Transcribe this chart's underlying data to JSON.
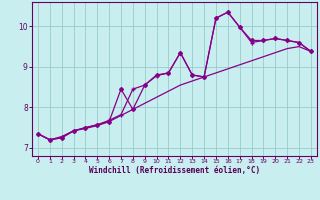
{
  "xlabel": "Windchill (Refroidissement éolien,°C)",
  "bg_color": "#c8eef0",
  "grid_color": "#99cccc",
  "line_color": "#880088",
  "xlim": [
    -0.5,
    23.5
  ],
  "ylim": [
    6.8,
    10.6
  ],
  "xticks": [
    0,
    1,
    2,
    3,
    4,
    5,
    6,
    7,
    8,
    9,
    10,
    11,
    12,
    13,
    14,
    15,
    16,
    17,
    18,
    19,
    20,
    21,
    22,
    23
  ],
  "yticks": [
    7,
    8,
    9,
    10
  ],
  "line1_x": [
    0,
    1,
    2,
    3,
    4,
    5,
    6,
    7,
    8,
    9,
    10,
    11,
    12,
    13,
    14,
    15,
    16,
    17,
    18,
    19,
    20,
    21,
    22,
    23
  ],
  "line1_y": [
    7.35,
    7.2,
    7.25,
    7.42,
    7.48,
    7.55,
    7.65,
    7.8,
    7.95,
    8.1,
    8.25,
    8.4,
    8.55,
    8.65,
    8.75,
    8.85,
    8.95,
    9.05,
    9.15,
    9.25,
    9.35,
    9.45,
    9.5,
    9.38
  ],
  "line2_x": [
    0,
    1,
    2,
    3,
    4,
    5,
    6,
    7,
    8,
    9,
    10,
    11,
    12,
    13,
    14,
    15,
    16,
    17,
    18,
    19,
    20,
    21,
    22,
    23
  ],
  "line2_y": [
    7.35,
    7.2,
    7.25,
    7.42,
    7.5,
    7.57,
    7.65,
    8.45,
    7.95,
    8.55,
    8.8,
    8.85,
    9.35,
    8.8,
    8.75,
    10.2,
    10.35,
    9.98,
    9.65,
    9.65,
    9.7,
    9.65,
    9.6,
    9.38
  ],
  "line3_x": [
    0,
    1,
    2,
    3,
    4,
    5,
    6,
    7,
    8,
    9,
    10,
    11,
    12,
    13,
    14,
    15,
    16,
    17,
    18,
    19,
    20,
    21,
    22,
    23
  ],
  "line3_y": [
    7.35,
    7.2,
    7.28,
    7.42,
    7.5,
    7.57,
    7.68,
    7.82,
    8.45,
    8.55,
    8.78,
    8.85,
    9.35,
    8.8,
    8.75,
    10.2,
    10.35,
    9.98,
    9.6,
    9.65,
    9.7,
    9.65,
    9.6,
    9.38
  ]
}
